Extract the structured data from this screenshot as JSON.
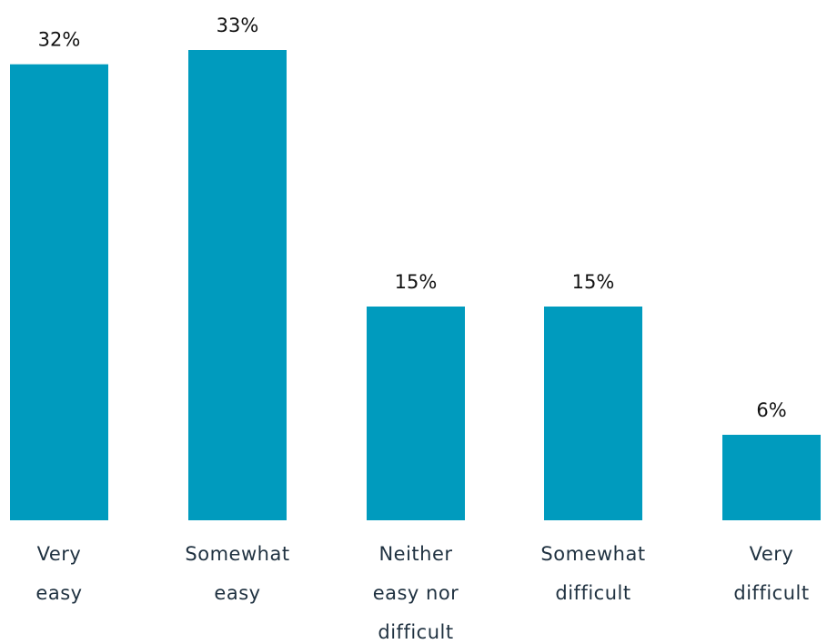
{
  "chart_data": {
    "type": "bar",
    "title": "",
    "xlabel": "",
    "ylabel": "",
    "categories": [
      [
        "Very",
        "easy"
      ],
      [
        "Somewhat",
        "easy"
      ],
      [
        "Neither",
        "easy nor",
        "difficult"
      ],
      [
        "Somewhat",
        "difficult"
      ],
      [
        "Very",
        "difficult"
      ]
    ],
    "values": [
      32,
      33,
      15,
      15,
      6
    ],
    "value_labels": [
      "32%",
      "33%",
      "15%",
      "15%",
      "6%"
    ],
    "ylim": [
      0,
      33
    ],
    "grid": false,
    "legend": "none",
    "bar_color": "#009bbe"
  }
}
